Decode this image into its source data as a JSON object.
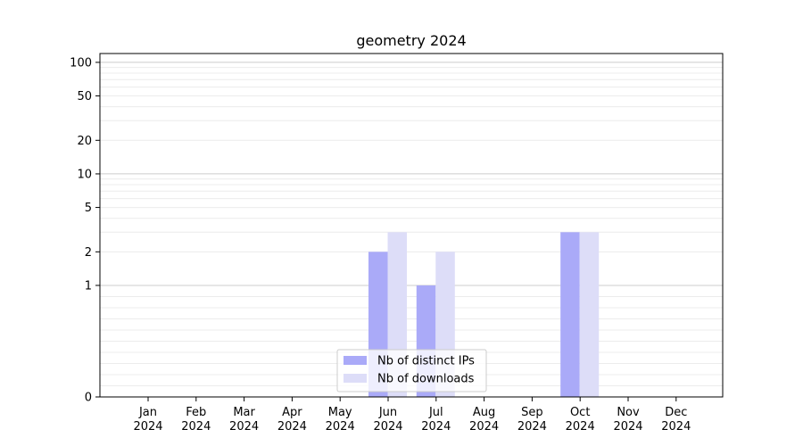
{
  "chart_data": {
    "type": "bar",
    "title": "geometry 2024",
    "xlabel": "",
    "ylabel": "",
    "yscale": "symlog",
    "ylim": [
      0,
      120
    ],
    "yticks": [
      0,
      1,
      2,
      5,
      10,
      20,
      50,
      100
    ],
    "categories": [
      [
        "Jan",
        "2024"
      ],
      [
        "Feb",
        "2024"
      ],
      [
        "Mar",
        "2024"
      ],
      [
        "Apr",
        "2024"
      ],
      [
        "May",
        "2024"
      ],
      [
        "Jun",
        "2024"
      ],
      [
        "Jul",
        "2024"
      ],
      [
        "Aug",
        "2024"
      ],
      [
        "Sep",
        "2024"
      ],
      [
        "Oct",
        "2024"
      ],
      [
        "Nov",
        "2024"
      ],
      [
        "Dec",
        "2024"
      ]
    ],
    "series": [
      {
        "name": "Nb of distinct IPs",
        "color": "#aaaaf8",
        "values": [
          0,
          0,
          0,
          0,
          0,
          2,
          1,
          0,
          0,
          3,
          0,
          0
        ]
      },
      {
        "name": "Nb of downloads",
        "color": "#ddddf8",
        "values": [
          0,
          0,
          0,
          0,
          0,
          3,
          2,
          0,
          0,
          3,
          0,
          0
        ]
      }
    ],
    "grid": true,
    "legend": "lower-center"
  }
}
